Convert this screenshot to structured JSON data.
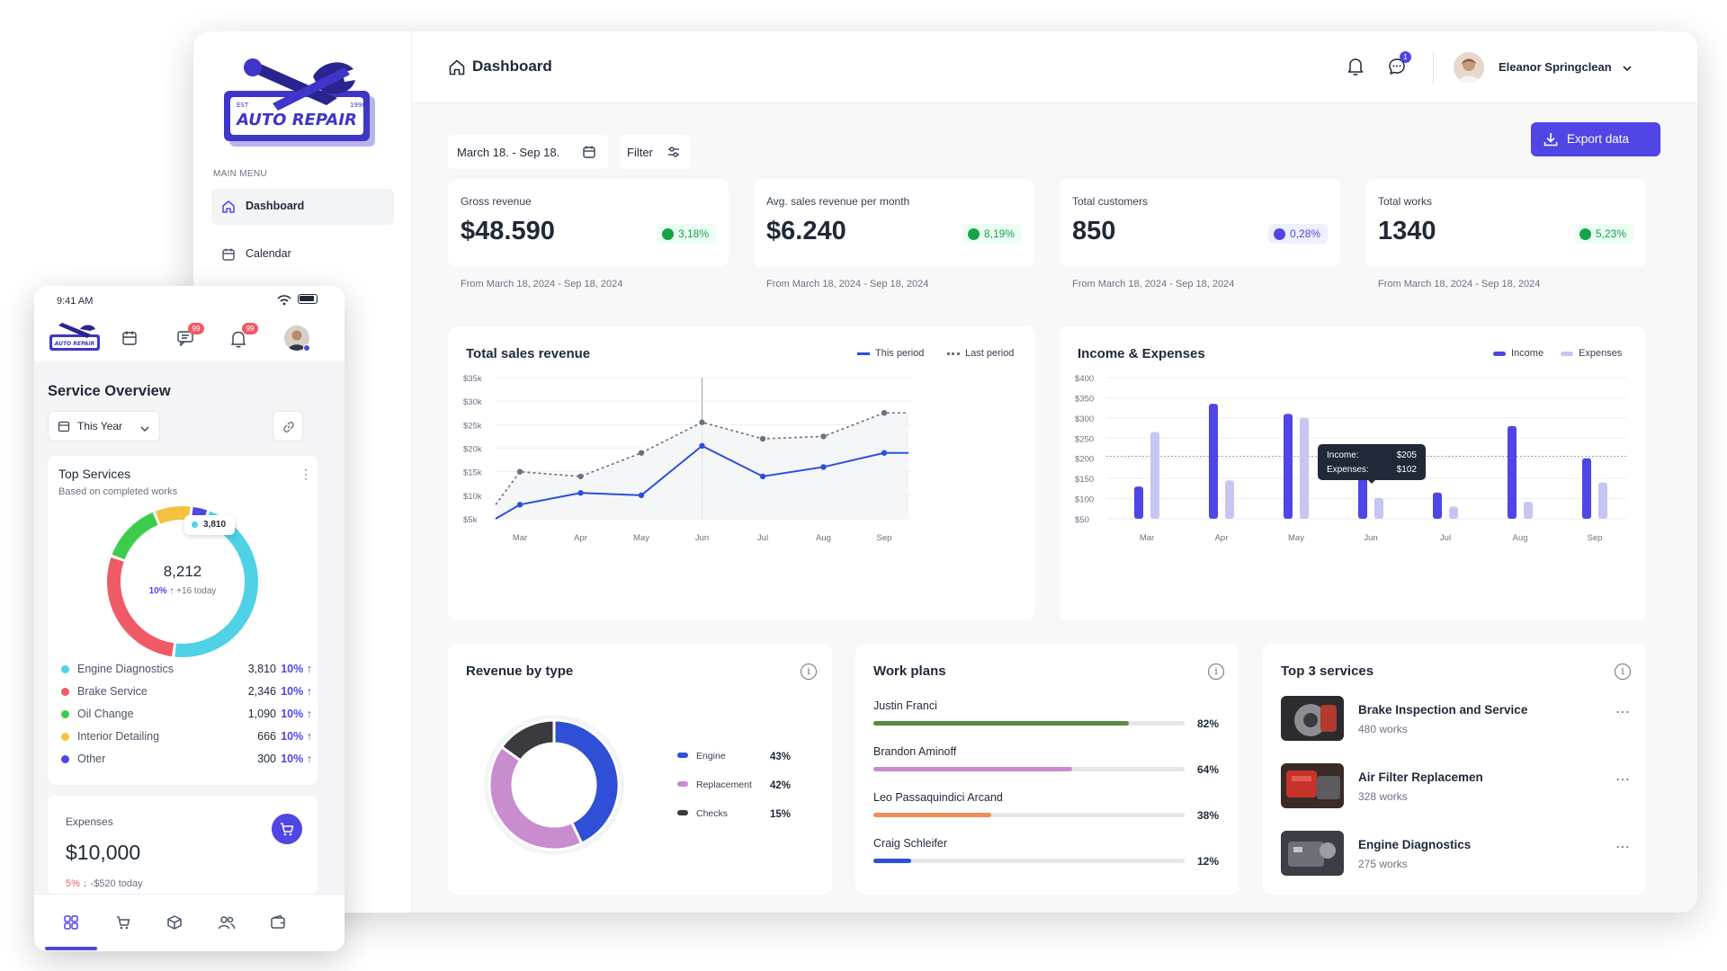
{
  "brand": {
    "logo_text": "AUTO REPAIR",
    "est_left": "EST",
    "est_right": "1990"
  },
  "sidebar": {
    "section_label": "MAIN MENU",
    "items": [
      {
        "label": "Dashboard",
        "icon": "home-icon",
        "active": true
      },
      {
        "label": "Calendar",
        "icon": "calendar-icon",
        "active": false
      }
    ]
  },
  "header": {
    "title": "Dashboard",
    "message_badge": "1",
    "user_name": "Eleanor Springclean"
  },
  "toolbar": {
    "date_range": "March 18. - Sep 18.",
    "filter_label": "Filter",
    "export_label": "Export data"
  },
  "kpis": [
    {
      "label": "Gross revenue",
      "value": "$48.590",
      "change": "3,18%",
      "badge_color": "#16a34a",
      "footer": "From March 18, 2024 - Sep 18, 2024"
    },
    {
      "label": "Avg. sales revenue per month",
      "value": "$6.240",
      "change": "8,19%",
      "badge_color": "#16a34a",
      "footer": "From March 18, 2024 - Sep 18, 2024"
    },
    {
      "label": "Total customers",
      "value": "850",
      "change": "0,28%",
      "badge_color": "#4f46e5",
      "footer": "From March 18, 2024 - Sep 18, 2024"
    },
    {
      "label": "Total works",
      "value": "1340",
      "change": "5,23%",
      "badge_color": "#16a34a",
      "footer": "From March 18, 2024 - Sep 18, 2024"
    }
  ],
  "sales_chart": {
    "title": "Total sales revenue",
    "legend_this": "This period",
    "legend_last": "Last period"
  },
  "income_chart": {
    "title": "Income & Expenses",
    "legend_income": "Income",
    "legend_expenses": "Expenses",
    "tooltip_income_label": "Income:",
    "tooltip_income_value": "$205",
    "tooltip_expenses_label": "Expenses:",
    "tooltip_expenses_value": "$102"
  },
  "chart_data": [
    {
      "type": "line",
      "title": "Total sales revenue",
      "x": [
        "Mar",
        "Apr",
        "May",
        "Jun",
        "Jul",
        "Aug",
        "Sep"
      ],
      "yticks": [
        "$5k",
        "$10k",
        "$15k",
        "$20k",
        "$25k",
        "$30k",
        "$35k"
      ],
      "ylim": [
        5,
        35
      ],
      "series": [
        {
          "name": "This period",
          "style": "solid",
          "color": "#2f4fd6",
          "points": [
            [
              -0.4,
              5
            ],
            [
              0,
              8
            ],
            [
              1,
              10.5
            ],
            [
              2,
              10
            ],
            [
              3,
              20.5
            ],
            [
              4,
              14
            ],
            [
              5,
              16
            ],
            [
              6,
              19
            ],
            [
              6.4,
              19
            ]
          ]
        },
        {
          "name": "Last period",
          "style": "dotted",
          "color": "#6b7280",
          "points": [
            [
              -0.4,
              8
            ],
            [
              0,
              15
            ],
            [
              1,
              14
            ],
            [
              2,
              19
            ],
            [
              3,
              25.5
            ],
            [
              4,
              22
            ],
            [
              5,
              22.5
            ],
            [
              6,
              27.5
            ],
            [
              6.4,
              27.5
            ]
          ]
        }
      ],
      "highlight_x": "Jun"
    },
    {
      "type": "bar",
      "title": "Income & Expenses",
      "categories": [
        "Mar",
        "Apr",
        "May",
        "Jun",
        "Jul",
        "Aug",
        "Sep"
      ],
      "yticks": [
        "$50",
        "$100",
        "$150",
        "$200",
        "$250",
        "$300",
        "$350",
        "$400"
      ],
      "ylim": [
        50,
        400
      ],
      "series": [
        {
          "name": "Income",
          "color": "#4f46e5",
          "values": [
            130,
            335,
            310,
            205,
            115,
            280,
            200
          ]
        },
        {
          "name": "Expenses",
          "color": "#c7c5f1",
          "values": [
            265,
            145,
            300,
            102,
            80,
            92,
            140
          ]
        }
      ],
      "reference_line": 205
    },
    {
      "type": "pie",
      "title": "Revenue by type",
      "slices": [
        {
          "name": "Engine",
          "value": 43,
          "label": "43%",
          "color": "#2f4fd6"
        },
        {
          "name": "Replacement",
          "value": 42,
          "label": "42%",
          "color": "#c98ccf"
        },
        {
          "name": "Checks",
          "value": 15,
          "label": "15%",
          "color": "#3a3a3f"
        }
      ]
    },
    {
      "type": "pie",
      "title": "Top Services",
      "center_value": "8,212",
      "slices": [
        {
          "name": "Engine Diagnostics",
          "value": 3810,
          "color": "#4fd1e6"
        },
        {
          "name": "Brake Service",
          "value": 2346,
          "color": "#f05a67"
        },
        {
          "name": "Oil Change",
          "value": 1090,
          "color": "#3ccc4b"
        },
        {
          "name": "Interior Detailing",
          "value": 666,
          "color": "#f3c33f"
        },
        {
          "name": "Other",
          "value": 300,
          "color": "#4f46e5"
        }
      ]
    }
  ],
  "revenue_by_type": {
    "title": "Revenue by type"
  },
  "work_plans": {
    "title": "Work plans",
    "items": [
      {
        "name": "Justin Franci",
        "percent": 82,
        "label": "82%",
        "color": "#5a8a3c"
      },
      {
        "name": "Brandon Aminoff",
        "percent": 64,
        "label": "64%",
        "color": "#c98ccf"
      },
      {
        "name": "Leo Passaquindici Arcand",
        "percent": 38,
        "label": "38%",
        "color": "#f08c5a"
      },
      {
        "name": "Craig Schleifer",
        "percent": 12,
        "label": "12%",
        "color": "#2f4fd6"
      }
    ]
  },
  "top_services": {
    "title": "Top 3 services",
    "items": [
      {
        "name": "Brake Inspection and Service",
        "sub": "480 works"
      },
      {
        "name": "Air Filter Replacemen",
        "sub": "328 works"
      },
      {
        "name": "Engine Diagnostics",
        "sub": "275 works"
      }
    ]
  },
  "phone": {
    "time": "9:41 AM",
    "chat_badge": "99",
    "bell_badge": "99",
    "heading": "Service Overview",
    "period": "This Year",
    "top_services_title": "Top Services",
    "top_services_sub": "Based on completed works",
    "donut_total": "8,212",
    "donut_pct": "10%",
    "donut_today": "+16 today",
    "callout": "3,810",
    "services": [
      {
        "name": "Engine Diagnostics",
        "value": "3,810",
        "pct": "10%",
        "color": "#4fd1e6"
      },
      {
        "name": "Brake Service",
        "value": "2,346",
        "pct": "10%",
        "color": "#f05a67"
      },
      {
        "name": "Oil Change",
        "value": "1,090",
        "pct": "10%",
        "color": "#3ccc4b"
      },
      {
        "name": "Interior Detailing",
        "value": "666",
        "pct": "10%",
        "color": "#f3c33f"
      },
      {
        "name": "Other",
        "value": "300",
        "pct": "10%",
        "color": "#4f46e5"
      }
    ],
    "expenses_label": "Expenses",
    "expenses_value": "$10,000",
    "expenses_pct": "5%",
    "expenses_today": "-$520 today"
  }
}
